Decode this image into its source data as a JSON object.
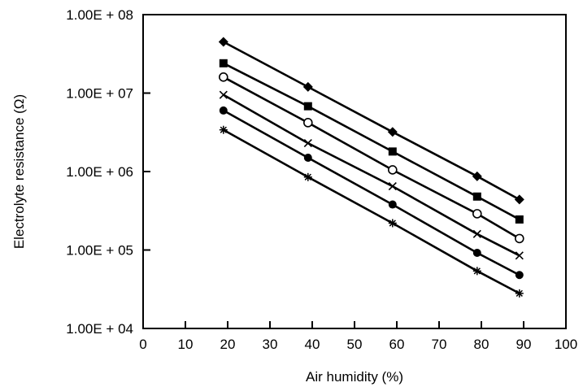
{
  "chart_data": {
    "type": "line",
    "title": "",
    "xlabel": "Air humidity (%)",
    "ylabel": "Electrolyte resistance (Ω)",
    "xlim": [
      0,
      100
    ],
    "ylim": [
      10000,
      100000000
    ],
    "yscale": "log",
    "x_ticks": [
      0,
      10,
      20,
      30,
      40,
      50,
      60,
      70,
      80,
      90,
      100
    ],
    "x_tick_labels": [
      "0",
      "10",
      "20",
      "30",
      "40",
      "50",
      "60",
      "70",
      "80",
      "90",
      "100"
    ],
    "y_ticks": [
      10000,
      100000,
      1000000,
      10000000,
      100000000
    ],
    "y_tick_labels": [
      "1.00E + 04",
      "1.00E + 05",
      "1.00E + 06",
      "1.00E + 07",
      "1.00E + 08"
    ],
    "grid": false,
    "legend": "none",
    "line_color": "#000000",
    "series": [
      {
        "marker": "diamond",
        "x": [
          19,
          39,
          59,
          79,
          89
        ],
        "y": [
          45000000,
          12000000,
          3200000,
          870000,
          440000
        ]
      },
      {
        "marker": "square",
        "x": [
          19,
          39,
          59,
          79,
          89
        ],
        "y": [
          24000000,
          6800000,
          1800000,
          480000,
          245000
        ]
      },
      {
        "marker": "circle-open",
        "x": [
          19,
          39,
          59,
          79,
          89
        ],
        "y": [
          16000000,
          4200000,
          1050000,
          290000,
          140000
        ]
      },
      {
        "marker": "x",
        "x": [
          19,
          39,
          59,
          79,
          89
        ],
        "y": [
          9500000,
          2300000,
          650000,
          160000,
          85000
        ]
      },
      {
        "marker": "circle-filled",
        "x": [
          19,
          39,
          59,
          79,
          89
        ],
        "y": [
          6000000,
          1500000,
          380000,
          92000,
          48000
        ]
      },
      {
        "marker": "asterisk",
        "x": [
          19,
          39,
          59,
          79,
          89
        ],
        "y": [
          3400000,
          850000,
          220000,
          54000,
          28000
        ]
      }
    ]
  }
}
